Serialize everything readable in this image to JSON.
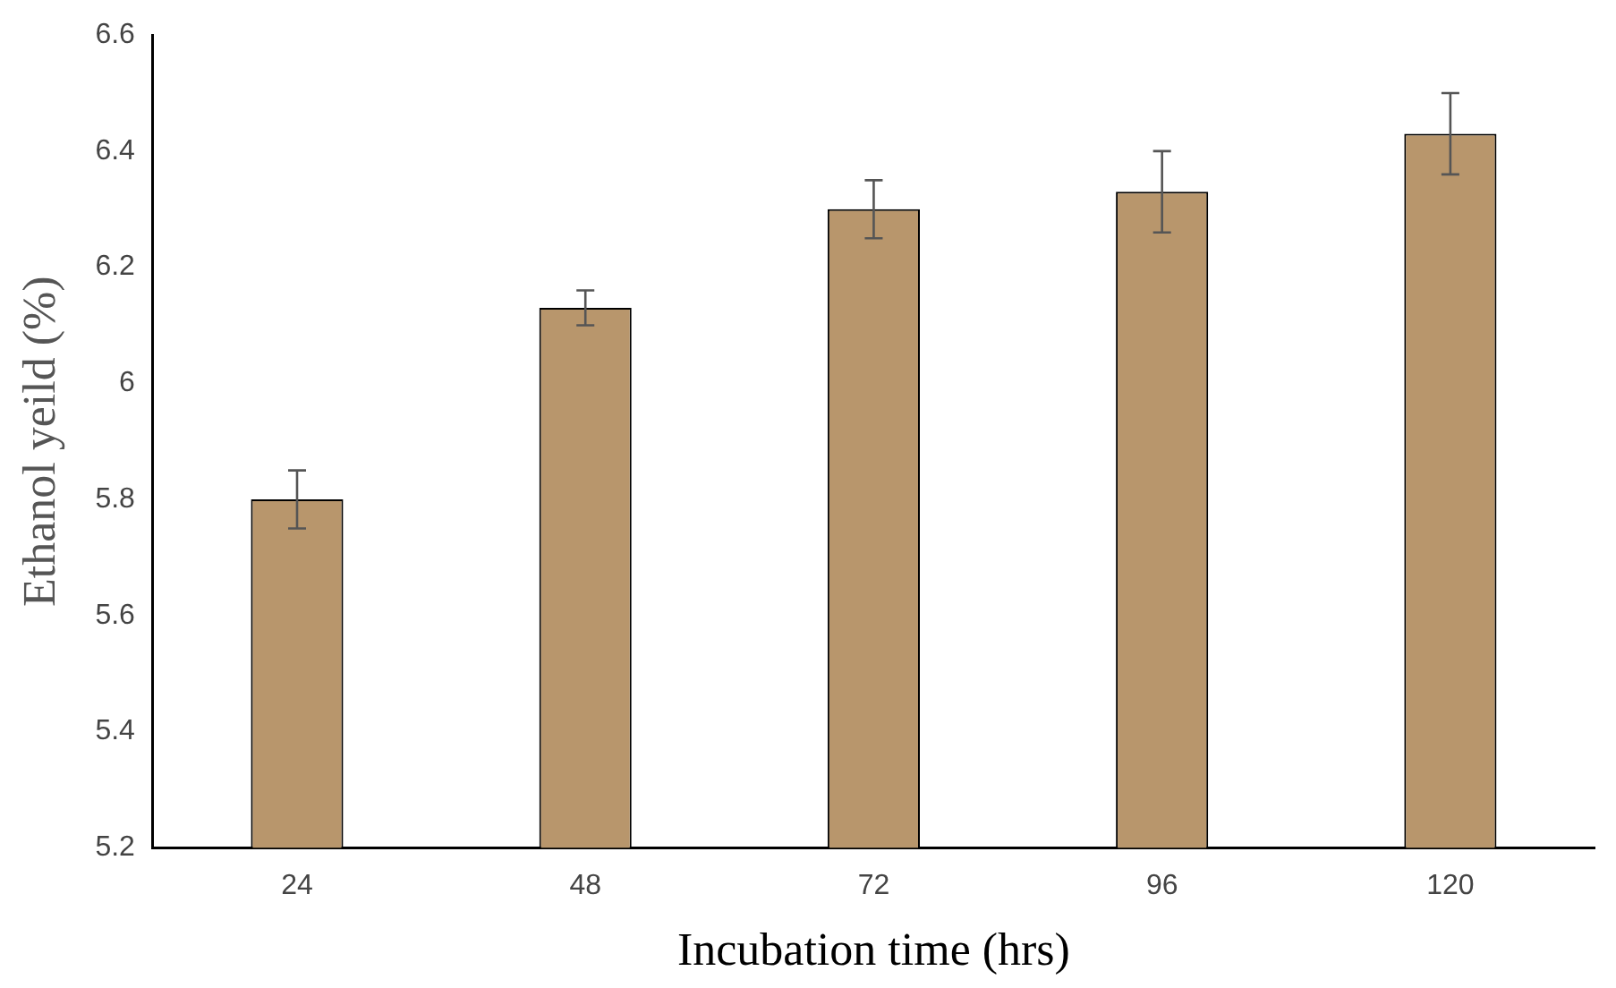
{
  "chart_data": {
    "type": "bar",
    "xlabel": "Incubation time (hrs)",
    "ylabel": "Ethanol yeild (%)",
    "categories": [
      "24",
      "48",
      "72",
      "96",
      "120"
    ],
    "values": [
      5.8,
      6.13,
      6.3,
      6.33,
      6.43
    ],
    "errors": [
      0.05,
      0.03,
      0.05,
      0.07,
      0.07
    ],
    "color": "#b8966c",
    "ylim": [
      5.2,
      6.6
    ],
    "yticks": [
      5.2,
      5.4,
      5.6,
      5.8,
      6,
      6.2,
      6.4,
      6.6
    ],
    "grid": false,
    "legend": false
  }
}
